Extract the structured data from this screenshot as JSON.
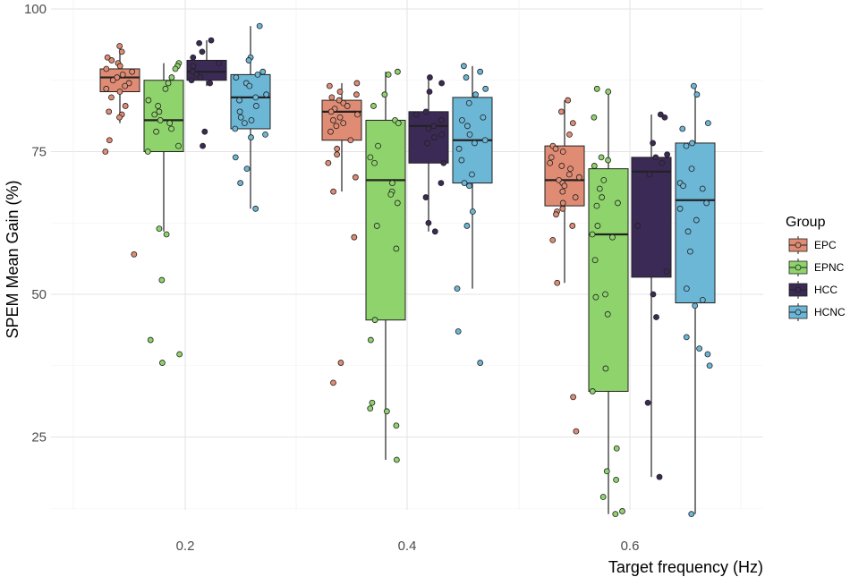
{
  "chart_data": {
    "type": "boxplot",
    "title": "",
    "xlabel": "Target frequency (Hz)",
    "ylabel": "SPEM Mean Gain (%)",
    "categories": [
      "0.2",
      "0.4",
      "0.6"
    ],
    "y_ticks": [
      "100",
      "75",
      "50",
      "25"
    ],
    "ylim": [
      11,
      100
    ],
    "grid": true,
    "legend": {
      "title": "Group",
      "position": "right"
    },
    "series": [
      {
        "name": "EPC",
        "color": "#E08B73",
        "boxes": [
          {
            "q1": 85.5,
            "median": 88.0,
            "q3": 89.5,
            "whisker_low": 80.0,
            "whisker_high": 93.0
          },
          {
            "q1": 77.0,
            "median": 82.0,
            "q3": 84.0,
            "whisker_low": 68.0,
            "whisker_high": 87.0
          },
          {
            "q1": 65.5,
            "median": 70.0,
            "q3": 76.0,
            "whisker_low": 52.0,
            "whisker_high": 84.0
          }
        ],
        "points": [
          [
            93.5,
            92.5,
            91.5,
            91.0,
            90.5,
            90.0,
            89.5,
            89.0,
            88.5,
            88.0,
            87.5,
            87.0,
            86.5,
            86.0,
            85.5,
            84.5,
            83.0,
            82.0,
            81.5,
            81.0,
            77.0,
            75.0,
            57.0
          ],
          [
            87.0,
            86.5,
            85.5,
            85.0,
            84.5,
            84.0,
            83.5,
            83.0,
            82.5,
            82.0,
            81.5,
            81.0,
            80.5,
            80.0,
            79.5,
            78.5,
            77.0,
            75.5,
            74.5,
            73.0,
            70.5,
            68.0,
            60.0,
            38.0,
            34.5
          ],
          [
            84.0,
            82.0,
            80.0,
            78.0,
            76.0,
            75.5,
            75.0,
            74.0,
            73.0,
            72.5,
            72.0,
            71.0,
            70.5,
            70.0,
            69.5,
            69.0,
            68.0,
            67.0,
            66.0,
            65.0,
            64.5,
            64.0,
            62.0,
            59.5,
            52.0,
            32.0,
            26.0
          ]
        ]
      },
      {
        "name": "EPNC",
        "color": "#8ED36B",
        "boxes": [
          {
            "q1": 75.0,
            "median": 80.5,
            "q3": 87.5,
            "whisker_low": 61.0,
            "whisker_high": 90.5
          },
          {
            "q1": 45.5,
            "median": 70.0,
            "q3": 80.5,
            "whisker_low": 21.0,
            "whisker_high": 89.0
          },
          {
            "q1": 33.0,
            "median": 60.5,
            "q3": 72.0,
            "whisker_low": 11.5,
            "whisker_high": 86.0
          }
        ],
        "points": [
          [
            90.5,
            90.0,
            89.5,
            88.0,
            87.0,
            86.0,
            84.0,
            83.0,
            82.0,
            81.5,
            80.5,
            80.0,
            79.0,
            78.5,
            76.0,
            75.0,
            61.5,
            60.5,
            52.5,
            42.0,
            39.5,
            38.0
          ],
          [
            89.0,
            88.5,
            85.0,
            83.0,
            80.5,
            80.0,
            76.0,
            74.0,
            73.0,
            69.5,
            68.0,
            67.5,
            66.0,
            62.0,
            58.0,
            45.5,
            42.0,
            31.0,
            30.0,
            29.5,
            27.0,
            21.0
          ],
          [
            86.0,
            85.5,
            81.0,
            74.0,
            73.5,
            72.5,
            70.0,
            68.5,
            67.0,
            66.0,
            65.5,
            62.0,
            60.5,
            60.0,
            56.0,
            50.0,
            49.5,
            46.5,
            37.0,
            33.0,
            23.0,
            19.0,
            17.5,
            14.5,
            12.0,
            11.5
          ]
        ]
      },
      {
        "name": "HCC",
        "color": "#3B2A55",
        "boxes": [
          {
            "q1": 87.5,
            "median": 89.0,
            "q3": 91.0,
            "whisker_low": 86.5,
            "whisker_high": 94.5
          },
          {
            "q1": 73.0,
            "median": 79.5,
            "q3": 82.0,
            "whisker_low": 61.0,
            "whisker_high": 88.0
          },
          {
            "q1": 53.0,
            "median": 71.5,
            "q3": 74.0,
            "whisker_low": 18.0,
            "whisker_high": 81.5
          }
        ],
        "points": [
          [
            94.5,
            94.0,
            92.5,
            91.5,
            90.5,
            90.0,
            89.0,
            88.5,
            88.0,
            87.5,
            87.0,
            78.5,
            76.0
          ],
          [
            88.0,
            87.0,
            85.5,
            82.0,
            81.5,
            80.5,
            79.5,
            79.0,
            78.0,
            77.5,
            76.5,
            73.0,
            69.5,
            67.0,
            62.5,
            61.0
          ],
          [
            81.5,
            81.0,
            76.5,
            74.5,
            74.0,
            73.0,
            71.0,
            62.0,
            54.0,
            50.0,
            46.0,
            31.0,
            18.0
          ]
        ]
      },
      {
        "name": "HCNC",
        "color": "#6CB6D6",
        "boxes": [
          {
            "q1": 79.0,
            "median": 84.5,
            "q3": 88.5,
            "whisker_low": 65.0,
            "whisker_high": 97.0
          },
          {
            "q1": 69.5,
            "median": 77.0,
            "q3": 84.5,
            "whisker_low": 51.0,
            "whisker_high": 90.0
          },
          {
            "q1": 48.5,
            "median": 66.5,
            "q3": 76.5,
            "whisker_low": 11.5,
            "whisker_high": 86.5
          }
        ],
        "points": [
          [
            97.0,
            91.5,
            91.0,
            89.0,
            88.5,
            88.0,
            87.0,
            86.5,
            85.0,
            84.5,
            84.0,
            83.0,
            82.0,
            81.0,
            80.5,
            80.0,
            79.0,
            78.0,
            77.5,
            74.0,
            72.0,
            69.5,
            65.0
          ],
          [
            90.0,
            89.0,
            88.0,
            86.0,
            85.0,
            83.5,
            81.0,
            80.5,
            79.5,
            78.0,
            77.0,
            76.5,
            75.5,
            73.5,
            71.0,
            69.5,
            69.0,
            64.5,
            62.0,
            51.0,
            43.5,
            38.0
          ],
          [
            86.5,
            85.0,
            80.0,
            79.0,
            76.5,
            76.0,
            72.0,
            69.5,
            69.0,
            68.5,
            66.0,
            65.0,
            63.0,
            61.0,
            57.5,
            51.0,
            49.0,
            48.0,
            42.5,
            40.5,
            39.5,
            37.5,
            11.5
          ]
        ]
      }
    ]
  }
}
